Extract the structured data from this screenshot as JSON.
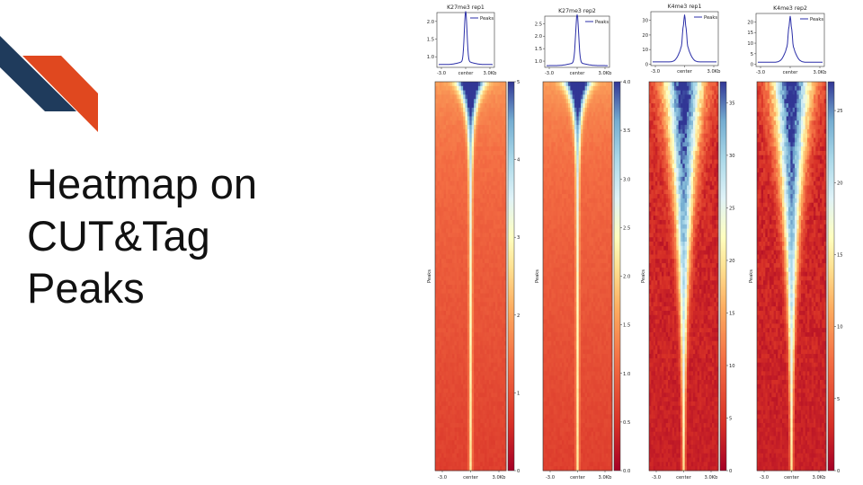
{
  "slide": {
    "title_lines": [
      "Heatmap on",
      "CUT&Tag",
      "Peaks"
    ],
    "accent_colors": [
      "#1f3b5c",
      "#e0481f"
    ]
  },
  "chart_data": [
    {
      "type": "line",
      "title": "K27me3 rep1",
      "legend": "Peaks",
      "legend_position": "top-right",
      "x_ticks": [
        "-3.0",
        "center",
        "3.0Kb"
      ],
      "y_ticks": [
        1.0,
        1.5,
        2.0
      ],
      "ylim": [
        0.7,
        2.25
      ],
      "profile": {
        "base": 0.78,
        "peak": 2.2
      },
      "heatmap": {
        "colorbar_ticks": [
          0,
          1,
          2,
          3,
          4,
          5
        ],
        "vmax": 5,
        "ylabel": "Peaks",
        "x_ticks": [
          "-3.0",
          "center",
          "3.0Kb"
        ],
        "style": "broad"
      }
    },
    {
      "type": "line",
      "title": "K27me3 rep2",
      "legend": "Peaks",
      "legend_position": "top-right",
      "x_ticks": [
        "-3.0",
        "center",
        "3.0Kb"
      ],
      "y_ticks": [
        1.0,
        1.5,
        2.0,
        2.5
      ],
      "ylim": [
        0.75,
        2.8
      ],
      "profile": {
        "base": 0.82,
        "peak": 2.75
      },
      "heatmap": {
        "colorbar_ticks": [
          0.0,
          0.5,
          1.0,
          1.5,
          2.0,
          2.5,
          3.0,
          3.5,
          4.0
        ],
        "vmax": 4.0,
        "ylabel": "Peaks",
        "x_ticks": [
          "-3.0",
          "center",
          "3.0Kb"
        ],
        "style": "broad"
      }
    },
    {
      "type": "line",
      "title": "K4me3 rep1",
      "legend": "Peaks",
      "legend_position": "top-right",
      "x_ticks": [
        "-3.0",
        "center",
        "3.0Kb"
      ],
      "y_ticks": [
        0,
        10,
        20,
        30
      ],
      "ylim": [
        -1,
        36
      ],
      "profile": {
        "base": 1.5,
        "peak": 35
      },
      "heatmap": {
        "colorbar_ticks": [
          0,
          5,
          10,
          15,
          20,
          25,
          30,
          35
        ],
        "vmax": 37,
        "ylabel": "Peaks",
        "x_ticks": [
          "-3.0",
          "center",
          "3.0Kb"
        ],
        "style": "sharp"
      }
    },
    {
      "type": "line",
      "title": "K4me3 rep2",
      "legend": "Peaks",
      "legend_position": "top-right",
      "x_ticks": [
        "-3.0",
        "center",
        "3.0Kb"
      ],
      "y_ticks": [
        0,
        5,
        10,
        15,
        20
      ],
      "ylim": [
        -1,
        24
      ],
      "profile": {
        "base": 1.0,
        "peak": 23.5
      },
      "heatmap": {
        "colorbar_ticks": [
          0,
          5,
          10,
          15,
          20,
          25
        ],
        "vmax": 27,
        "ylabel": "Peaks",
        "x_ticks": [
          "-3.0",
          "center",
          "3.0Kb"
        ],
        "style": "sharp"
      }
    }
  ]
}
